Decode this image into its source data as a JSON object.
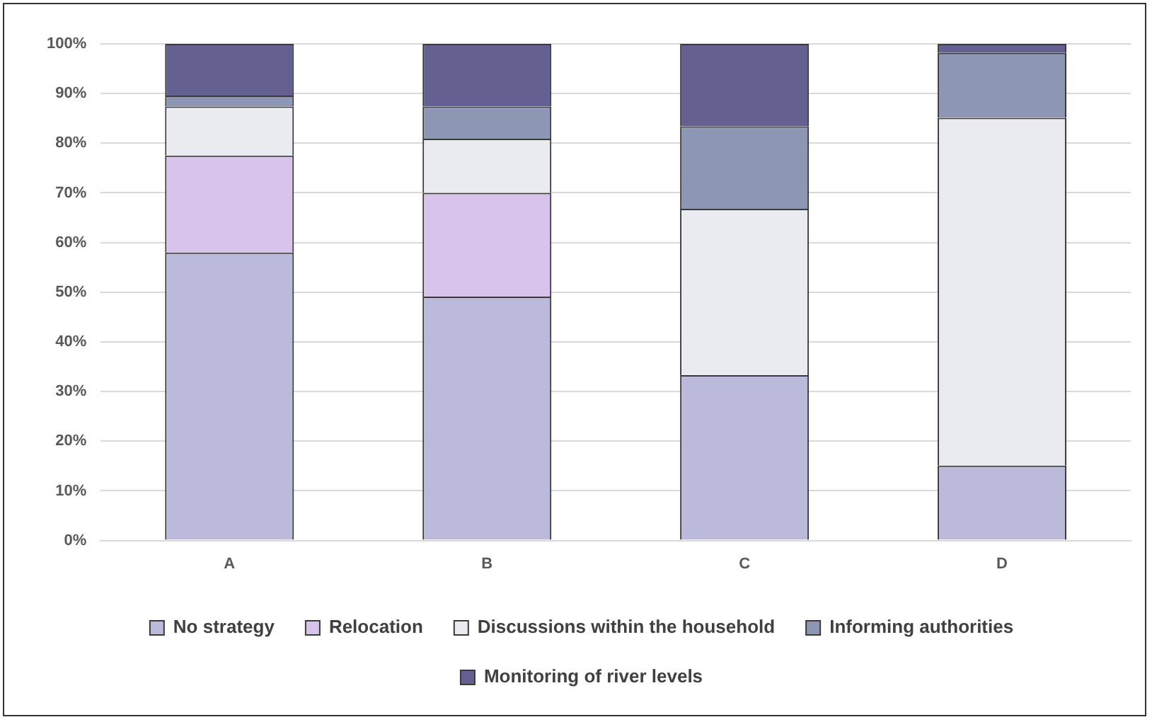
{
  "chart_data": {
    "type": "bar",
    "stacked": true,
    "categories": [
      "A",
      "B",
      "C",
      "D"
    ],
    "series": [
      {
        "name": "No strategy",
        "color": "#bcbadb",
        "values": [
          58,
          49.1,
          33.3,
          15.1
        ]
      },
      {
        "name": "Relocation",
        "color": "#d8c3ea",
        "values": [
          19.5,
          20.9,
          0,
          0
        ]
      },
      {
        "name": "Discussions within the household",
        "color": "#e9ebf0",
        "values": [
          9.9,
          10.9,
          33.5,
          70
        ]
      },
      {
        "name": "Informing authorities",
        "color": "#8d97b3",
        "values": [
          2.2,
          6.5,
          16.6,
          13.1
        ]
      },
      {
        "name": "Monitoring of river levels",
        "color": "#646092",
        "values": [
          10.4,
          12.6,
          16.6,
          1.8
        ]
      }
    ],
    "ylim": [
      0,
      100
    ],
    "yticks": [
      {
        "value": 0,
        "label": "0%"
      },
      {
        "value": 10,
        "label": "10%"
      },
      {
        "value": 20,
        "label": "20%"
      },
      {
        "value": 30,
        "label": "30%"
      },
      {
        "value": 40,
        "label": "40%"
      },
      {
        "value": 50,
        "label": "50%"
      },
      {
        "value": 60,
        "label": "60%"
      },
      {
        "value": 70,
        "label": "70%"
      },
      {
        "value": 80,
        "label": "80%"
      },
      {
        "value": 90,
        "label": "90%"
      },
      {
        "value": 100,
        "label": "100%"
      }
    ],
    "grid": "y",
    "legend": "bottom"
  }
}
